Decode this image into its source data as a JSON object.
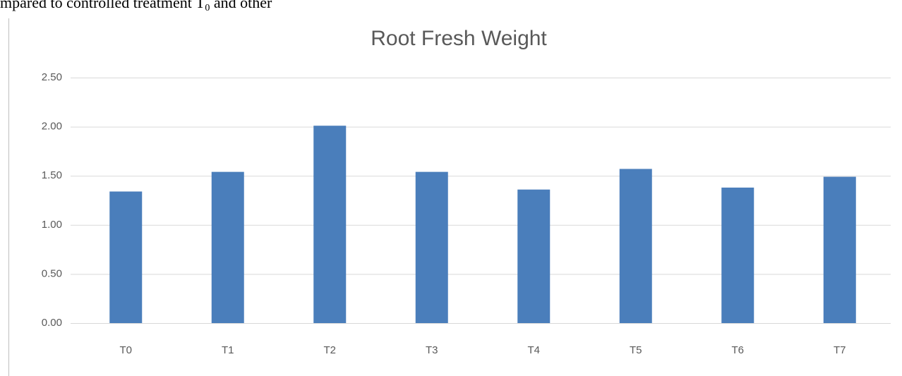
{
  "header_text": [
    "mpared  to  controlled  treatment  T",
    "0",
    "  and  other"
  ],
  "chart_data": {
    "type": "bar",
    "title": "Root Fresh Weight",
    "categories": [
      "T0",
      "T1",
      "T2",
      "T3",
      "T4",
      "T5",
      "T6",
      "T7"
    ],
    "values": [
      1.34,
      1.54,
      2.01,
      1.54,
      1.36,
      1.57,
      1.38,
      1.49
    ],
    "color": "#4a7ebb",
    "ylim": [
      0,
      2.5
    ],
    "yticks": [
      {
        "value": 0,
        "label": "0.00"
      },
      {
        "value": 0.5,
        "label": "0.50"
      },
      {
        "value": 1,
        "label": "1.00"
      },
      {
        "value": 1.5,
        "label": "1.50"
      },
      {
        "value": 2,
        "label": "2.00"
      },
      {
        "value": 2.5,
        "label": "2.50"
      }
    ],
    "grid": true
  }
}
